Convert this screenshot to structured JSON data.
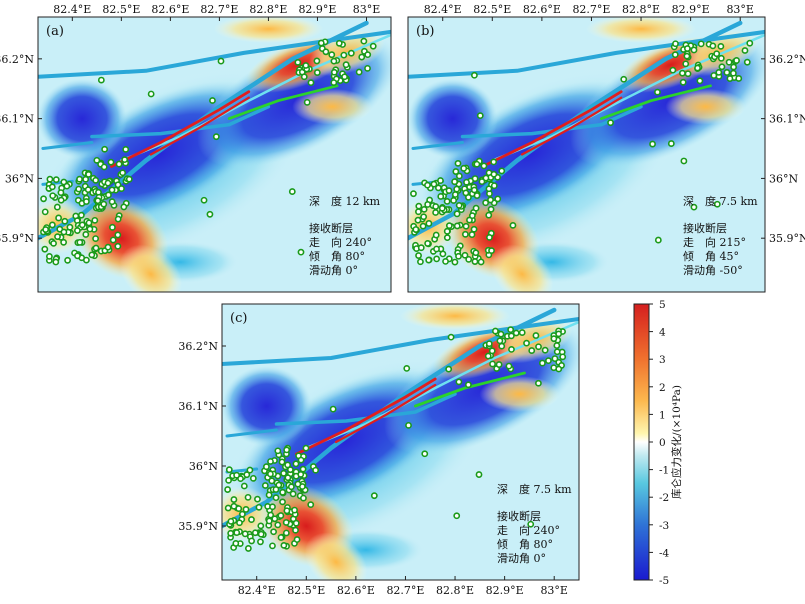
{
  "chart_data": [
    {
      "type": "heatmap",
      "panel_label": "(a)",
      "xlabels": [
        "82.4°E",
        "82.5°E",
        "82.6°E",
        "82.7°E",
        "82.8°E",
        "82.9°E",
        "83°E"
      ],
      "ylabels": [
        "36.2°N",
        "36.1°N",
        "36°N",
        "35.9°N"
      ],
      "xticks": [
        82.4,
        82.5,
        82.6,
        82.7,
        82.8,
        82.9,
        83.0
      ],
      "yticks": [
        36.2,
        36.1,
        36.0,
        35.9
      ],
      "xlim": [
        82.33,
        83.05
      ],
      "ylim": [
        35.81,
        36.27
      ],
      "info": [
        "深　度 12 km",
        "接收断层",
        "走　向 240°",
        "倾　角 80°",
        "滑动角 0°"
      ],
      "depth_km": 12,
      "strike_deg": 240,
      "dip_deg": 80,
      "rake_deg": 0
    },
    {
      "type": "heatmap",
      "panel_label": "(b)",
      "xlabels": [
        "82.4°E",
        "82.5°E",
        "82.6°E",
        "82.7°E",
        "82.8°E",
        "82.9°E",
        "83°E"
      ],
      "ylabels": [
        "36.2°N",
        "36.1°N",
        "36°N",
        "35.9°N"
      ],
      "xticks": [
        82.4,
        82.5,
        82.6,
        82.7,
        82.8,
        82.9,
        83.0
      ],
      "yticks": [
        36.2,
        36.1,
        36.0,
        35.9
      ],
      "xlim": [
        82.33,
        83.05
      ],
      "ylim": [
        35.81,
        36.27
      ],
      "info": [
        "深　度 7.5 km",
        "接收断层",
        "走　向 215°",
        "倾　角 45°",
        "滑动角 -50°"
      ],
      "depth_km": 7.5,
      "strike_deg": 215,
      "dip_deg": 45,
      "rake_deg": -50
    },
    {
      "type": "heatmap",
      "panel_label": "(c)",
      "xlabels": [
        "82.4°E",
        "82.5°E",
        "82.6°E",
        "82.7°E",
        "82.8°E",
        "82.9°E",
        "83°E"
      ],
      "ylabels": [
        "36.2°N",
        "36.1°N",
        "36°N",
        "35.9°N"
      ],
      "xticks": [
        82.4,
        82.5,
        82.6,
        82.7,
        82.8,
        82.9,
        83.0
      ],
      "yticks": [
        36.2,
        36.1,
        36.0,
        35.9
      ],
      "xlim": [
        82.33,
        83.05
      ],
      "ylim": [
        35.81,
        36.27
      ],
      "info": [
        "深　度 7.5 km",
        "接收断层",
        "走　向 240°",
        "倾　角 80°",
        "滑动角 0°"
      ],
      "depth_km": 7.5,
      "strike_deg": 240,
      "dip_deg": 80,
      "rake_deg": 0
    }
  ],
  "colorbar": {
    "label": "库仑应力变化/(×10⁴Pa)",
    "min": -5,
    "max": 5,
    "ticks": [
      "5",
      "4",
      "3",
      "2",
      "1",
      "0",
      "-1",
      "-2",
      "-3",
      "-4",
      "-5"
    ],
    "colors": [
      "#d7191c",
      "#f46d43",
      "#fdae61",
      "#fee08b",
      "#ffffbf",
      "#ffffff",
      "#abd9e9",
      "#74add1",
      "#4575b4",
      "#3030c8",
      "#1a1ad0"
    ]
  }
}
